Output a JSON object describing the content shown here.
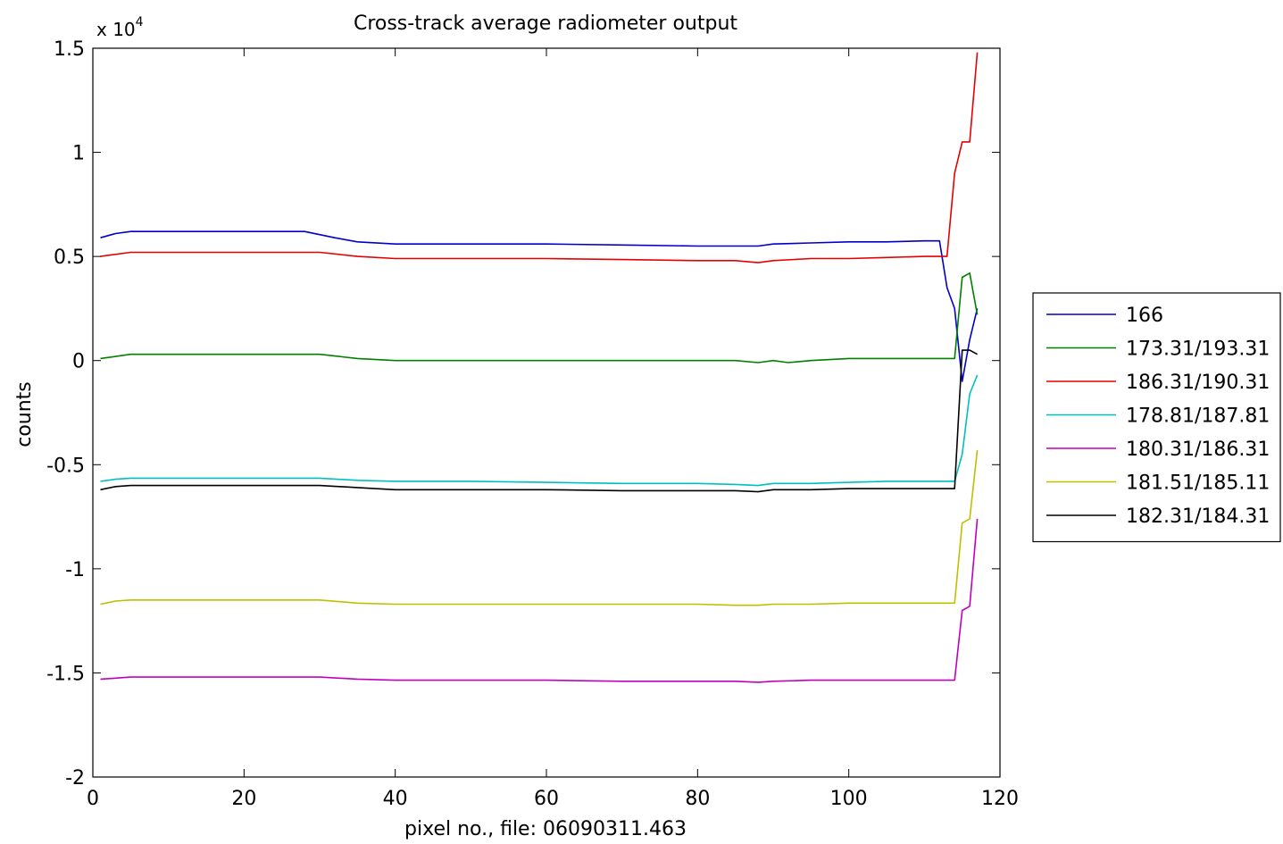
{
  "chart_data": {
    "type": "line",
    "title": "Cross-track average radiometer output",
    "xlabel": "pixel no., file: 06090311.463",
    "ylabel": "counts",
    "y_multiplier_label": "x 10",
    "y_multiplier_exp": "4",
    "xlim": [
      0,
      120
    ],
    "ylim": [
      -2,
      1.5
    ],
    "xticks": [
      0,
      20,
      40,
      60,
      80,
      100,
      120
    ],
    "yticks": [
      1.5,
      1,
      0.5,
      0,
      -0.5,
      -1,
      -1.5,
      -2
    ],
    "xtick_labels": [
      "0",
      "20",
      "40",
      "60",
      "80",
      "100",
      "120"
    ],
    "ytick_labels": [
      "1.5",
      "1",
      "0.5",
      "0",
      "-0.5",
      "-1",
      "-1.5",
      "-2"
    ],
    "grid": false,
    "legend_position": "right-outside",
    "series": [
      {
        "name": "166",
        "color": "#0000c8",
        "points": [
          [
            1,
            0.59
          ],
          [
            3,
            0.61
          ],
          [
            5,
            0.62
          ],
          [
            10,
            0.62
          ],
          [
            20,
            0.62
          ],
          [
            28,
            0.62
          ],
          [
            32,
            0.59
          ],
          [
            35,
            0.57
          ],
          [
            40,
            0.56
          ],
          [
            50,
            0.56
          ],
          [
            60,
            0.56
          ],
          [
            70,
            0.555
          ],
          [
            80,
            0.55
          ],
          [
            85,
            0.55
          ],
          [
            88,
            0.55
          ],
          [
            90,
            0.56
          ],
          [
            95,
            0.565
          ],
          [
            100,
            0.57
          ],
          [
            105,
            0.57
          ],
          [
            110,
            0.575
          ],
          [
            112,
            0.575
          ],
          [
            113,
            0.35
          ],
          [
            114,
            0.25
          ],
          [
            115,
            -0.1
          ],
          [
            116,
            0.1
          ],
          [
            117,
            0.25
          ]
        ]
      },
      {
        "name": "173.31/193.31",
        "color": "#008000",
        "points": [
          [
            1,
            0.01
          ],
          [
            3,
            0.02
          ],
          [
            5,
            0.03
          ],
          [
            10,
            0.03
          ],
          [
            20,
            0.03
          ],
          [
            30,
            0.03
          ],
          [
            35,
            0.01
          ],
          [
            40,
            0
          ],
          [
            50,
            0
          ],
          [
            60,
            0
          ],
          [
            70,
            0
          ],
          [
            80,
            0
          ],
          [
            85,
            0
          ],
          [
            88,
            -0.01
          ],
          [
            90,
            0
          ],
          [
            92,
            -0.01
          ],
          [
            95,
            0
          ],
          [
            100,
            0.01
          ],
          [
            105,
            0.01
          ],
          [
            110,
            0.01
          ],
          [
            114,
            0.01
          ],
          [
            115,
            0.4
          ],
          [
            116,
            0.42
          ],
          [
            117,
            0.22
          ]
        ]
      },
      {
        "name": "186.31/190.31",
        "color": "#e60000",
        "points": [
          [
            1,
            0.5
          ],
          [
            3,
            0.51
          ],
          [
            5,
            0.52
          ],
          [
            10,
            0.52
          ],
          [
            20,
            0.52
          ],
          [
            30,
            0.52
          ],
          [
            35,
            0.5
          ],
          [
            40,
            0.49
          ],
          [
            50,
            0.49
          ],
          [
            60,
            0.49
          ],
          [
            70,
            0.485
          ],
          [
            80,
            0.48
          ],
          [
            85,
            0.48
          ],
          [
            88,
            0.47
          ],
          [
            90,
            0.48
          ],
          [
            95,
            0.49
          ],
          [
            100,
            0.49
          ],
          [
            105,
            0.495
          ],
          [
            110,
            0.5
          ],
          [
            113,
            0.5
          ],
          [
            114,
            0.9
          ],
          [
            115,
            1.05
          ],
          [
            116,
            1.05
          ],
          [
            117,
            1.48
          ]
        ]
      },
      {
        "name": "178.81/187.81",
        "color": "#00bfbf",
        "points": [
          [
            1,
            -0.58
          ],
          [
            3,
            -0.57
          ],
          [
            5,
            -0.565
          ],
          [
            10,
            -0.565
          ],
          [
            20,
            -0.565
          ],
          [
            30,
            -0.565
          ],
          [
            35,
            -0.575
          ],
          [
            40,
            -0.58
          ],
          [
            50,
            -0.58
          ],
          [
            60,
            -0.585
          ],
          [
            70,
            -0.59
          ],
          [
            80,
            -0.59
          ],
          [
            85,
            -0.595
          ],
          [
            88,
            -0.6
          ],
          [
            90,
            -0.59
          ],
          [
            95,
            -0.59
          ],
          [
            100,
            -0.585
          ],
          [
            105,
            -0.58
          ],
          [
            110,
            -0.58
          ],
          [
            114,
            -0.58
          ],
          [
            115,
            -0.45
          ],
          [
            116,
            -0.16
          ],
          [
            117,
            -0.07
          ]
        ]
      },
      {
        "name": "180.31/186.31",
        "color": "#bf00bf",
        "points": [
          [
            1,
            -1.53
          ],
          [
            3,
            -1.525
          ],
          [
            5,
            -1.52
          ],
          [
            10,
            -1.52
          ],
          [
            20,
            -1.52
          ],
          [
            30,
            -1.52
          ],
          [
            35,
            -1.53
          ],
          [
            40,
            -1.535
          ],
          [
            50,
            -1.535
          ],
          [
            60,
            -1.535
          ],
          [
            70,
            -1.54
          ],
          [
            80,
            -1.54
          ],
          [
            85,
            -1.54
          ],
          [
            88,
            -1.545
          ],
          [
            90,
            -1.54
          ],
          [
            95,
            -1.535
          ],
          [
            100,
            -1.535
          ],
          [
            105,
            -1.535
          ],
          [
            110,
            -1.535
          ],
          [
            114,
            -1.535
          ],
          [
            115,
            -1.2
          ],
          [
            116,
            -1.18
          ],
          [
            117,
            -0.76
          ]
        ]
      },
      {
        "name": "181.51/185.11",
        "color": "#bfbf00",
        "points": [
          [
            1,
            -1.17
          ],
          [
            3,
            -1.155
          ],
          [
            5,
            -1.15
          ],
          [
            10,
            -1.15
          ],
          [
            20,
            -1.15
          ],
          [
            30,
            -1.15
          ],
          [
            35,
            -1.165
          ],
          [
            40,
            -1.17
          ],
          [
            50,
            -1.17
          ],
          [
            60,
            -1.17
          ],
          [
            70,
            -1.17
          ],
          [
            80,
            -1.17
          ],
          [
            85,
            -1.175
          ],
          [
            88,
            -1.175
          ],
          [
            90,
            -1.17
          ],
          [
            95,
            -1.17
          ],
          [
            100,
            -1.165
          ],
          [
            105,
            -1.165
          ],
          [
            110,
            -1.165
          ],
          [
            114,
            -1.165
          ],
          [
            115,
            -0.78
          ],
          [
            116,
            -0.76
          ],
          [
            117,
            -0.43
          ]
        ]
      },
      {
        "name": "182.31/184.31",
        "color": "#000000",
        "points": [
          [
            1,
            -0.62
          ],
          [
            3,
            -0.605
          ],
          [
            5,
            -0.6
          ],
          [
            10,
            -0.6
          ],
          [
            20,
            -0.6
          ],
          [
            30,
            -0.6
          ],
          [
            35,
            -0.61
          ],
          [
            40,
            -0.62
          ],
          [
            50,
            -0.62
          ],
          [
            60,
            -0.62
          ],
          [
            70,
            -0.625
          ],
          [
            80,
            -0.625
          ],
          [
            85,
            -0.625
          ],
          [
            88,
            -0.63
          ],
          [
            90,
            -0.62
          ],
          [
            95,
            -0.62
          ],
          [
            100,
            -0.615
          ],
          [
            105,
            -0.615
          ],
          [
            110,
            -0.615
          ],
          [
            114,
            -0.615
          ],
          [
            115,
            0.05
          ],
          [
            116,
            0.05
          ],
          [
            117,
            0.03
          ]
        ]
      }
    ]
  }
}
